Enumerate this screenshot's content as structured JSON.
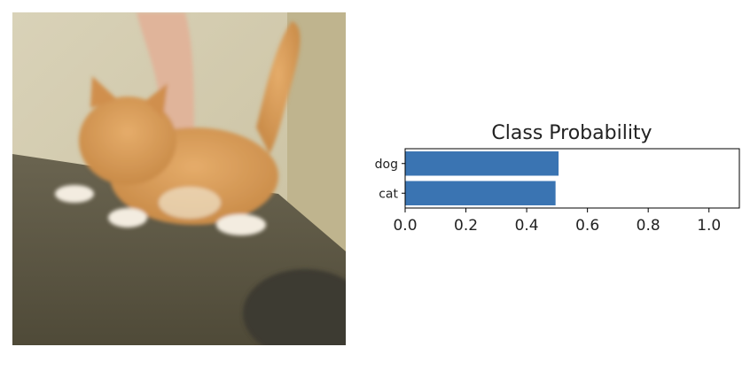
{
  "photo": {
    "icon": "kitten-photo-icon",
    "colors": {
      "wall": "#d7cfb4",
      "table": "#5f5a45",
      "cat": "#d99a56",
      "hand": "#e0b49a"
    }
  },
  "chart_data": {
    "type": "bar",
    "orientation": "horizontal",
    "title": "Class Probability",
    "categories": [
      "dog",
      "cat"
    ],
    "values": [
      0.505,
      0.495
    ],
    "xlim": [
      0.0,
      1.1
    ],
    "xticks": [
      "0.0",
      "0.2",
      "0.4",
      "0.6",
      "0.8",
      "1.0"
    ],
    "xlabel": "",
    "ylabel": "",
    "grid": false,
    "bar_color": "#3a74b2"
  }
}
